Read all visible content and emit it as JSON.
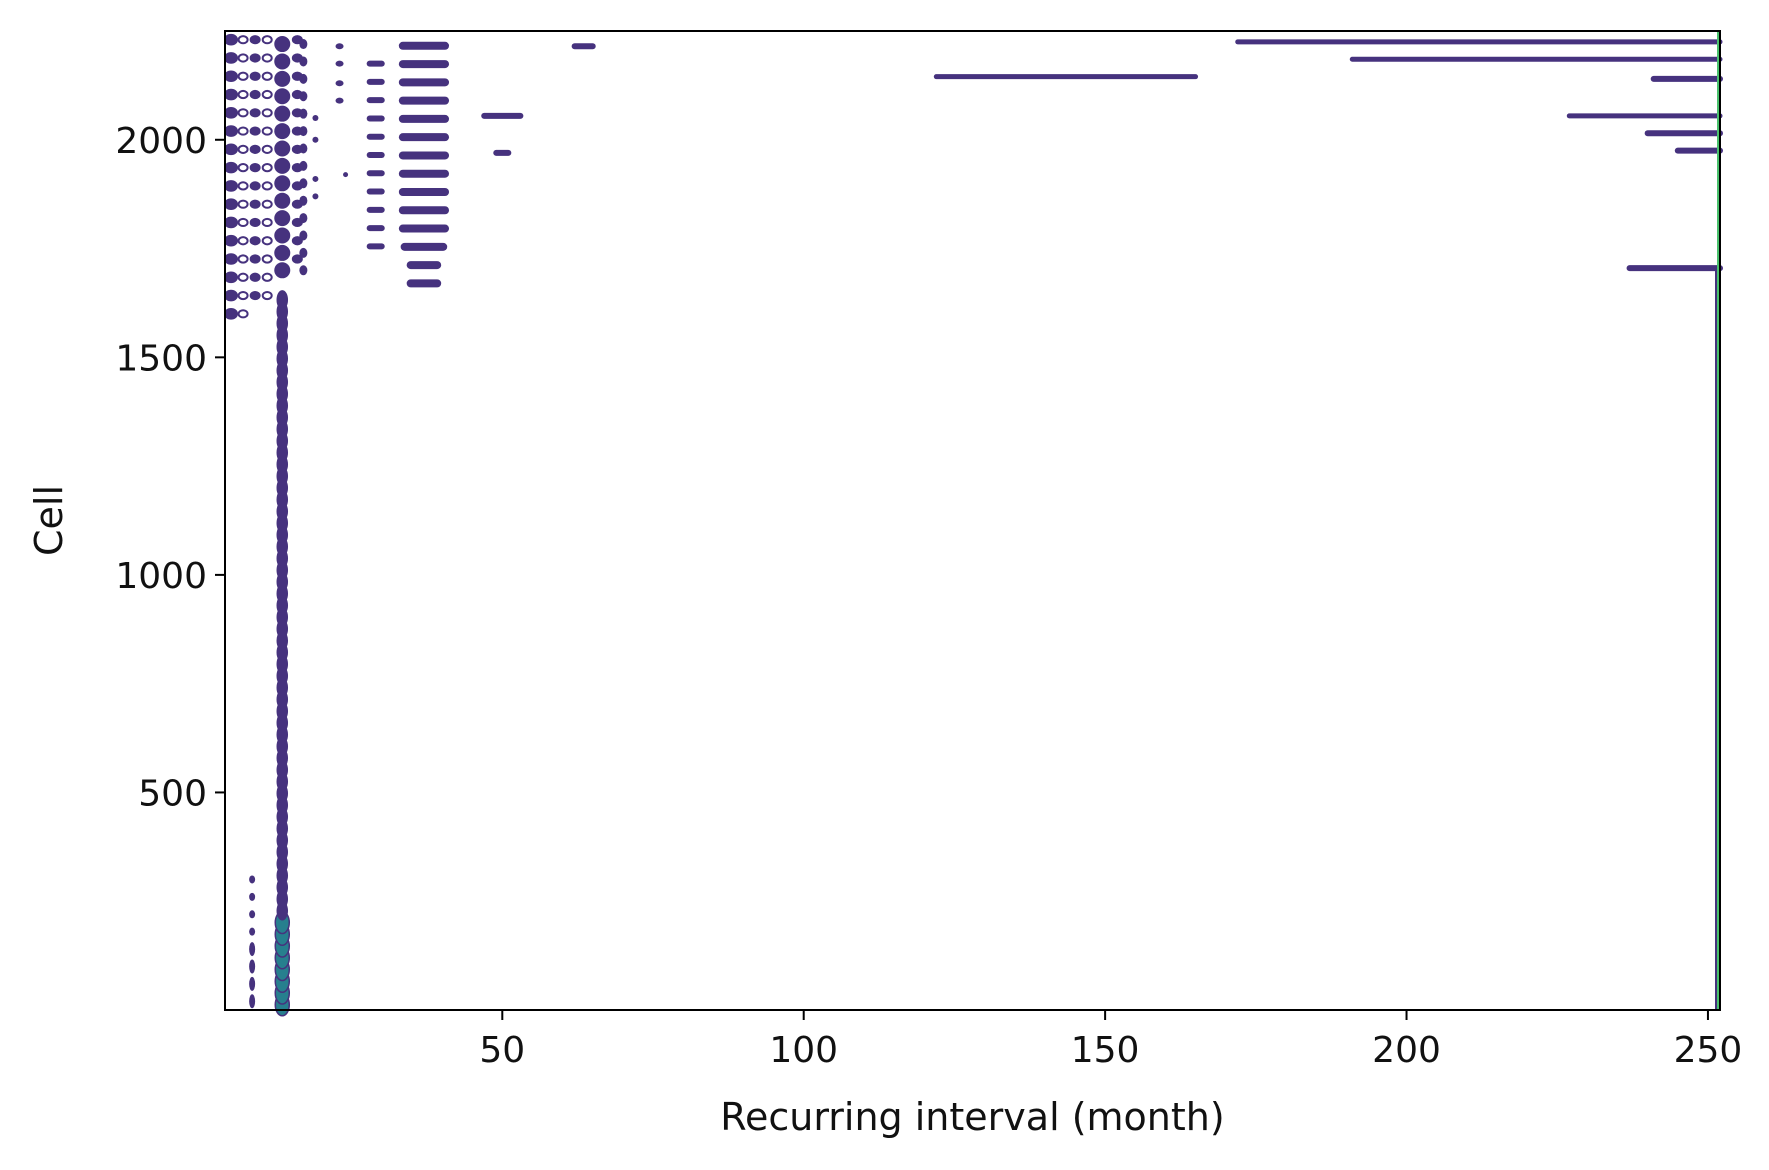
{
  "chart_data": {
    "type": "contour",
    "title": "",
    "xlabel": "Recurring interval (month)",
    "ylabel": "Cell",
    "xlim": [
      4,
      252
    ],
    "ylim": [
      0,
      2250
    ],
    "xticks": [
      50,
      100,
      150,
      200,
      250
    ],
    "yticks": [
      500,
      1000,
      1500,
      2000
    ],
    "grid": false,
    "legend": "none",
    "colors": {
      "contour_low": "#46327e",
      "contour_mid": "#365c8d",
      "contour_high": "#277f8e",
      "edge_highlight": "#4ac16d",
      "axis": "#000000"
    },
    "series": [
      {
        "values": [
          {
            "x0": 13,
            "x1": 14,
            "y0": 0,
            "y1": 1640
          },
          {
            "x0": 172,
            "x1": 252,
            "y0": 2225,
            "y1": 2225
          },
          {
            "x0": 191,
            "x1": 252,
            "y0": 2185,
            "y1": 2185
          },
          {
            "x0": 122,
            "x1": 165,
            "y0": 2145,
            "y1": 2145
          },
          {
            "x0": 241,
            "x1": 252,
            "y0": 2140,
            "y1": 2140
          },
          {
            "x0": 227,
            "x1": 252,
            "y0": 2055,
            "y1": 2055
          },
          {
            "x0": 240,
            "x1": 252,
            "y0": 2015,
            "y1": 2015
          },
          {
            "x0": 245,
            "x1": 252,
            "y0": 1975,
            "y1": 1975
          },
          {
            "x0": 237,
            "x1": 252,
            "y0": 1705,
            "y1": 1705
          },
          {
            "x0": 47,
            "x1": 53,
            "y0": 2055,
            "y1": 2055
          },
          {
            "x0": 49,
            "x1": 51,
            "y0": 1970,
            "y1": 1970
          },
          {
            "x0": 62,
            "x1": 65,
            "y0": 2215,
            "y1": 2215
          },
          {
            "x0": 35,
            "x1": 41,
            "y0": 1670,
            "y1": 2225
          },
          {
            "x0": 28,
            "x1": 30,
            "y0": 1745,
            "y1": 2215
          },
          {
            "x0": 4,
            "x1": 17,
            "y0": 1580,
            "y1": 2240
          },
          {
            "x0": 8,
            "x1": 9,
            "y0": 0,
            "y1": 300
          }
        ]
      }
    ]
  }
}
